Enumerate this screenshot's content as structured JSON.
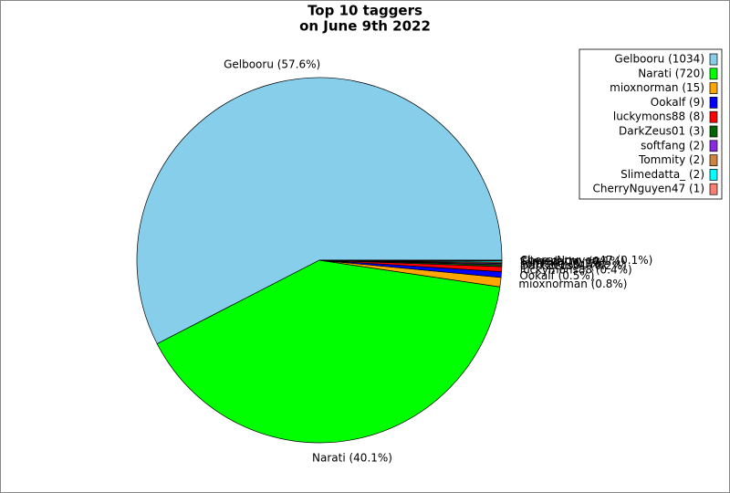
{
  "chart_data": {
    "type": "pie",
    "title": [
      "Top 10 taggers",
      "on June 9th 2022"
    ],
    "categories": [
      "Gelbooru",
      "Narati",
      "mioxnorman",
      "Ookalf",
      "luckymons88",
      "DarkZeus01",
      "softfang",
      "Tommity",
      "Slimedatta_",
      "CherryNguyen47"
    ],
    "values": [
      1034,
      720,
      15,
      9,
      8,
      3,
      2,
      2,
      2,
      1
    ],
    "legend_labels": [
      "Gelbooru (1034)",
      "Narati (720)",
      "mioxnorman (15)",
      "Ookalf (9)",
      "luckymons88 (8)",
      "DarkZeus01 (3)",
      "softfang (2)",
      "Tommity (2)",
      "Slimedatta_ (2)",
      "CherryNguyen47 (1)"
    ],
    "value_labels": [
      "Gelbooru (57.6%)",
      "Narati (40.1%)",
      "mioxnorman (0.8%)",
      "Ookalf (0.5%)",
      "luckymons88 (0.4%)",
      "DarkZeus01 (0.2%)",
      "softfang (0.1%)",
      "Tommity (0.1%)",
      "Slimedatta_ (0.1%)",
      "CherryNguyen47 (0.1%)"
    ],
    "colors": [
      "#87ceeb",
      "#00ff00",
      "#ffa500",
      "#0000ff",
      "#ff0000",
      "#006400",
      "#8a2be2",
      "#cd853f",
      "#00ffff",
      "#fa8072"
    ],
    "legend": "upper right"
  }
}
